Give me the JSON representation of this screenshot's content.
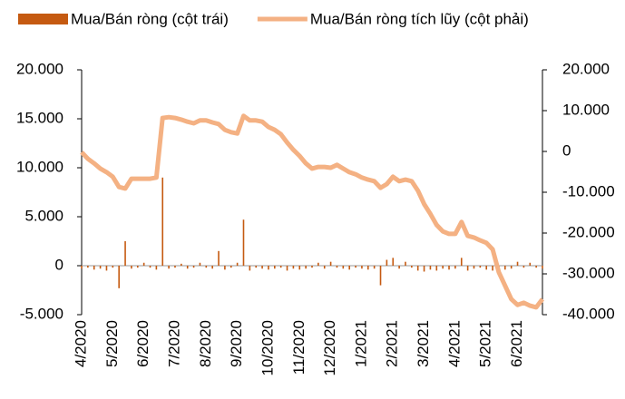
{
  "chart_data": {
    "type": "bar_line",
    "categories": [
      "4/2020",
      null,
      null,
      null,
      null,
      "5/2020",
      null,
      null,
      null,
      null,
      "6/2020",
      null,
      null,
      null,
      null,
      "7/2020",
      null,
      null,
      null,
      null,
      "8/2020",
      null,
      null,
      null,
      null,
      "9/2020",
      null,
      null,
      null,
      null,
      "10/2020",
      null,
      null,
      null,
      null,
      "11/2020",
      null,
      null,
      null,
      null,
      "12/2020",
      null,
      null,
      null,
      null,
      "1/2021",
      null,
      null,
      null,
      null,
      "2/2021",
      null,
      null,
      null,
      null,
      "3/2021",
      null,
      null,
      null,
      null,
      "4/2021",
      null,
      null,
      null,
      null,
      "5/2021",
      null,
      null,
      null,
      null,
      "6/2021",
      null,
      null,
      null,
      null
    ],
    "series": [
      {
        "name": "Mua/Bán ròng (cột trái)",
        "color": "#c55a11",
        "type": "bar",
        "axis": "y",
        "values": [
          -300,
          -200,
          -400,
          -300,
          -500,
          -200,
          -2300,
          2500,
          -300,
          -200,
          300,
          -200,
          -400,
          9000,
          -300,
          -200,
          200,
          -300,
          -200,
          300,
          -200,
          -300,
          1500,
          -400,
          -200,
          300,
          4700,
          -500,
          -200,
          -300,
          -400,
          -300,
          -200,
          -500,
          -300,
          -400,
          -300,
          -200,
          300,
          -300,
          400,
          -200,
          -300,
          -400,
          -200,
          -300,
          -400,
          -300,
          -2000,
          600,
          800,
          -300,
          400,
          -200,
          -500,
          -600,
          -400,
          -500,
          -300,
          -400,
          -300,
          800,
          -500,
          -300,
          -200,
          -400,
          -500,
          -900,
          -400,
          -300,
          400,
          -200,
          300,
          -200,
          -300
        ]
      },
      {
        "name": "Mua/Bán ròng tích lũy (cột phải)",
        "color": "#f4b183",
        "type": "line",
        "axis": "y2",
        "values": [
          -200,
          -1800,
          -2900,
          -4200,
          -5100,
          -6200,
          -8700,
          -9100,
          -6700,
          -6700,
          -6700,
          -6700,
          -6400,
          8200,
          8400,
          8200,
          7800,
          7300,
          6900,
          7600,
          7600,
          7100,
          6700,
          5300,
          4700,
          4400,
          8700,
          7600,
          7600,
          7300,
          6000,
          5300,
          4200,
          2200,
          400,
          -1100,
          -2900,
          -4200,
          -3800,
          -3800,
          -4000,
          -3300,
          -4200,
          -5100,
          -5600,
          -6400,
          -6900,
          -7300,
          -8900,
          -8000,
          -6200,
          -7300,
          -6900,
          -7300,
          -9600,
          -12900,
          -15300,
          -18000,
          -19600,
          -20200,
          -20200,
          -17300,
          -20700,
          -21100,
          -21800,
          -22400,
          -24000,
          -29600,
          -32900,
          -36200,
          -37600,
          -37100,
          -37800,
          -38200,
          -36200
        ]
      }
    ],
    "ylim": [
      -5000,
      20000
    ],
    "yticks": [
      {
        "value": -5000,
        "label": "-5.000"
      },
      0,
      {
        "value": 5000,
        "label": "5.000"
      },
      {
        "value": 10000,
        "label": "10.000"
      },
      {
        "value": 15000,
        "label": "15.000"
      },
      {
        "value": 20000,
        "label": "20.000"
      }
    ],
    "y2lim": [
      -40000,
      20000
    ],
    "y2ticks": [
      {
        "value": -40000,
        "label": "-40.000"
      },
      {
        "value": -30000,
        "label": "-30.000"
      },
      {
        "value": -20000,
        "label": "-20.000"
      },
      {
        "value": -10000,
        "label": "-10.000"
      },
      0,
      {
        "value": 10000,
        "label": "10.000"
      },
      {
        "value": 20000,
        "label": "20.000"
      }
    ],
    "legend": "top"
  }
}
